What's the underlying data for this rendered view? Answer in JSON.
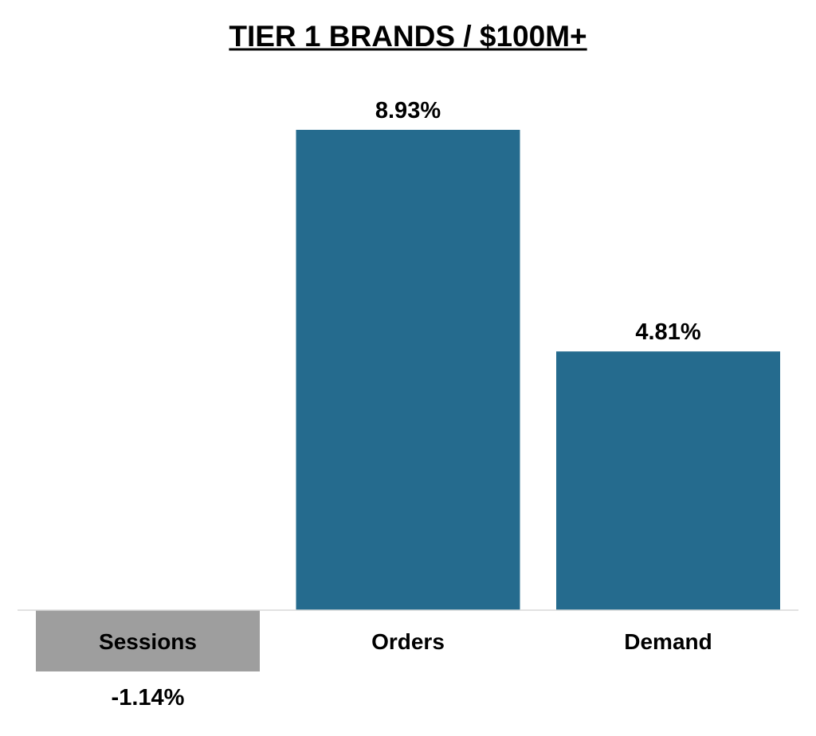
{
  "chart_data": {
    "type": "bar",
    "title": "TIER 1 BRANDS / $100M+",
    "categories": [
      "Sessions",
      "Orders",
      "Demand"
    ],
    "values": [
      -1.14,
      8.93,
      4.81
    ],
    "value_labels": [
      "-1.14%",
      "8.93%",
      "4.81%"
    ],
    "unit": "%",
    "xlabel": "",
    "ylabel": "",
    "ylim": [
      -1.14,
      8.93
    ],
    "grid": false,
    "legend": "none",
    "colors": {
      "positive": "#256B8E",
      "negative": "#9E9E9E",
      "baseline": "#D9D9D9",
      "text": "#000000"
    }
  }
}
